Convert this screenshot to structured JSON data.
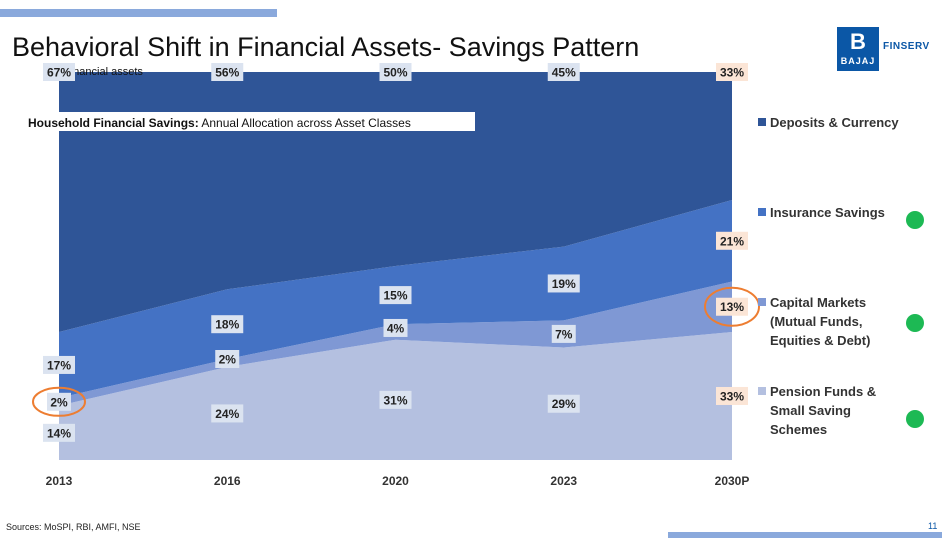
{
  "header": {
    "title": "Behavioral Shift in Financial Assets- Savings Pattern"
  },
  "logo": {
    "mark": "B",
    "brand": "BAJAJ",
    "name": "FINSERV"
  },
  "footer": {
    "sources": "Sources: MoSPI, RBI, AMFI, NSE",
    "page": "11"
  },
  "colors": {
    "deposits": "#2f5597",
    "insurance": "#4472c4",
    "capital": "#7f98d4",
    "pension": "#b4c0e0",
    "highlight_ring": "#ed7d31",
    "forecast_label_bg": "#fbe5d6",
    "status_dot": "#1db954"
  },
  "chart_data": {
    "type": "area",
    "stacked": true,
    "percent": true,
    "caption": "Financial assets",
    "title_bold": "Household Financial Savings:",
    "title_rest": " Annual Allocation across Asset Classes",
    "categories": [
      "2013",
      "2016",
      "2020",
      "2023",
      "2030P"
    ],
    "series": [
      {
        "name": "Deposits & Currency",
        "values": [
          67,
          56,
          50,
          45,
          33
        ]
      },
      {
        "name": "Insurance Savings",
        "values": [
          17,
          18,
          15,
          19,
          21
        ]
      },
      {
        "name": "Capital Markets (Mutual Funds, Equities & Debt)",
        "legend_lines": [
          "Capital Markets",
          "(Mutual Funds,",
          "Equities & Debt)"
        ],
        "values": [
          2,
          2,
          4,
          7,
          13
        ]
      },
      {
        "name": "Pension Funds & Small Saving Schemes",
        "legend_lines": [
          "Pension Funds &",
          "Small Saving",
          "Schemes"
        ],
        "values": [
          14,
          24,
          31,
          29,
          33
        ]
      }
    ],
    "data_labels": [
      [
        "67%",
        "56%",
        "50%",
        "45%",
        "33%"
      ],
      [
        "17%",
        "18%",
        "15%",
        "19%",
        "21%"
      ],
      [
        "2%",
        "2%",
        "4%",
        "7%",
        "13%"
      ],
      [
        "14%",
        "24%",
        "31%",
        "29%",
        "33%"
      ]
    ],
    "ylim": [
      0,
      100
    ],
    "highlighted": [
      {
        "series": "Capital Markets (Mutual Funds, Equities & Debt)",
        "category": "2013"
      },
      {
        "series": "Capital Markets (Mutual Funds, Equities & Debt)",
        "category": "2030P"
      }
    ],
    "legend_status_dots": [
      "Insurance Savings",
      "Capital Markets (Mutual Funds, Equities & Debt)",
      "Pension Funds & Small Saving Schemes"
    ]
  }
}
